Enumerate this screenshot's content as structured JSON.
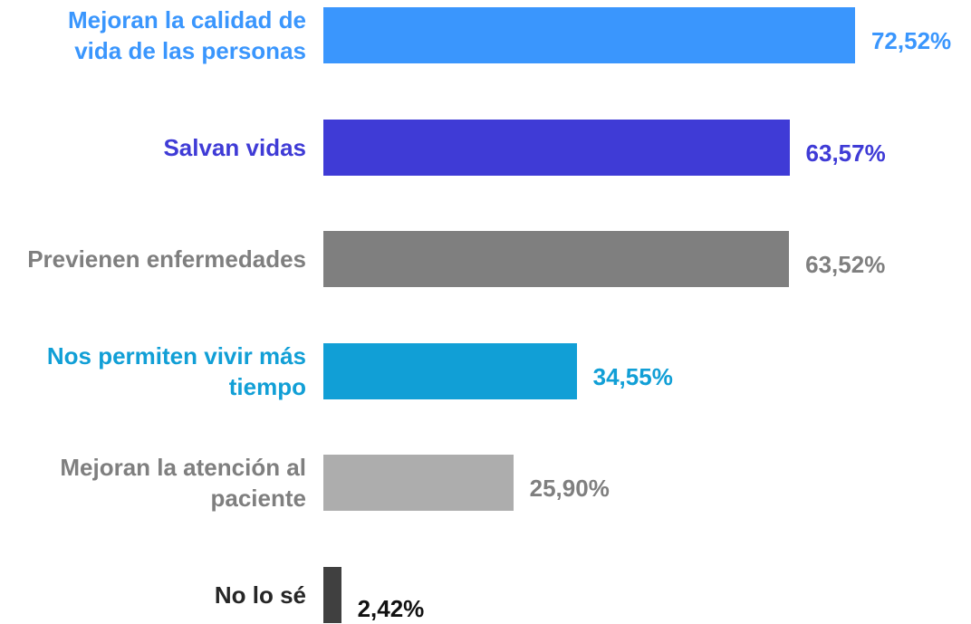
{
  "chart_data": {
    "type": "bar",
    "orientation": "horizontal",
    "categories": [
      "Mejoran la calidad de vida de las personas",
      "Salvan vidas",
      "Previenen enfermedades",
      "Nos permiten vivir más tiempo",
      "Mejoran la atención al paciente",
      "No lo sé"
    ],
    "values": [
      72.52,
      63.57,
      63.52,
      34.55,
      25.9,
      2.42
    ],
    "value_labels": [
      "72,52%",
      "63,57%",
      "63,52%",
      "34,55%",
      "25,90%",
      "2,42%"
    ],
    "colors": [
      "#3a96fd",
      "#3f3bd6",
      "#7f7f7f",
      "#119fd6",
      "#adadad",
      "#404040"
    ],
    "label_colors": [
      "#3a96fd",
      "#3f3bd6",
      "#7f7f7f",
      "#119fd6",
      "#7f7f7f",
      "#262626"
    ],
    "value_label_colors": [
      "#3a96fd",
      "#3f3bd6",
      "#7f7f7f",
      "#119fd6",
      "#7f7f7f",
      "#111111"
    ]
  }
}
